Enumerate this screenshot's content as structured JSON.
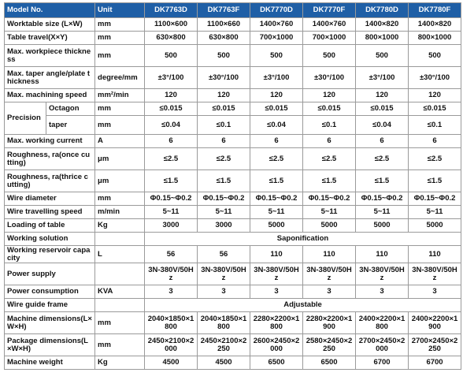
{
  "table": {
    "header": [
      "Model No.",
      "Unit",
      "DK7763D",
      "DK7763F",
      "DK7770D",
      "DK7770F",
      "DK7780D",
      "DK7780F"
    ],
    "rows": [
      {
        "label": "Worktable size (L×W)",
        "unit": "mm",
        "values": [
          "1100×600",
          "1100×660",
          "1400×760",
          "1400×760",
          "1400×820",
          "1400×820"
        ]
      },
      {
        "label": "Table travel(X×Y)",
        "unit": "mm",
        "values": [
          "630×800",
          "630×800",
          "700×1000",
          "700×1000",
          "800×1000",
          "800×1000"
        ]
      },
      {
        "label": "Max. workpiece thickness",
        "unit": "mm",
        "values": [
          "500",
          "500",
          "500",
          "500",
          "500",
          "500"
        ]
      },
      {
        "label": "Max. taper angle/plate thickness",
        "unit": "degree/mm",
        "values": [
          "±3°/100",
          "±30°/100",
          "±3°/100",
          "±30°/100",
          "±3°/100",
          "±30°/100"
        ]
      },
      {
        "label": "Max. machining speed",
        "unit": "mm²/min",
        "values": [
          "120",
          "120",
          "120",
          "120",
          "120",
          "120"
        ]
      },
      {
        "group": "Precision",
        "label": "Octagon",
        "unit": "mm",
        "values": [
          "≤0.015",
          "≤0.015",
          "≤0.015",
          "≤0.015",
          "≤0.015",
          "≤0.015"
        ]
      },
      {
        "label": "taper",
        "unit": "mm",
        "values": [
          "≤0.04",
          "≤0.1",
          "≤0.04",
          "≤0.1",
          "≤0.04",
          "≤0.1"
        ]
      },
      {
        "label": "Max. working current",
        "unit": "A",
        "values": [
          "6",
          "6",
          "6",
          "6",
          "6",
          "6"
        ]
      },
      {
        "label": "Roughness, ra(once cutting)",
        "unit": "μm",
        "values": [
          "≤2.5",
          "≤2.5",
          "≤2.5",
          "≤2.5",
          "≤2.5",
          "≤2.5"
        ]
      },
      {
        "label": "Roughness, ra(thrice cutting)",
        "unit": "μm",
        "values": [
          "≤1.5",
          "≤1.5",
          "≤1.5",
          "≤1.5",
          "≤1.5",
          "≤1.5"
        ]
      },
      {
        "label": "Wire diameter",
        "unit": "mm",
        "values": [
          "Φ0.15~Φ0.2",
          "Φ0.15~Φ0.2",
          "Φ0.15~Φ0.2",
          "Φ0.15~Φ0.2",
          "Φ0.15~Φ0.2",
          "Φ0.15~Φ0.2"
        ]
      },
      {
        "label": "Wire travelling speed",
        "unit": "m/min",
        "values": [
          "5~11",
          "5~11",
          "5~11",
          "5~11",
          "5~11",
          "5~11"
        ]
      },
      {
        "label": "Loading of table",
        "unit": "Kg",
        "values": [
          "3000",
          "3000",
          "5000",
          "5000",
          "5000",
          "5000"
        ]
      },
      {
        "label": "Working solution",
        "value": "Saponification"
      },
      {
        "label": "Working reservoir capacity",
        "unit": "L",
        "values": [
          "56",
          "56",
          "110",
          "110",
          "110",
          "110"
        ]
      },
      {
        "label": "Power supply",
        "values": [
          "3N-380V/50Hz",
          "3N-380V/50Hz",
          "3N-380V/50Hz",
          "3N-380V/50Hz",
          "3N-380V/50Hz",
          "3N-380V/50Hz"
        ]
      },
      {
        "label": "Power consumption",
        "unit": "KVA",
        "values": [
          "3",
          "3",
          "3",
          "3",
          "3",
          "3"
        ]
      },
      {
        "label": "Wire guide frame",
        "value": "Adjustable"
      },
      {
        "label": "Machine dimensions(L×W×H)",
        "unit": "mm",
        "values": [
          "2040×1850×1800",
          "2040×1850×1800",
          "2280×2200×1800",
          "2280×2200×1900",
          "2400×2200×1800",
          "2400×2200×1900"
        ]
      },
      {
        "label": "Package dimensions(L×W×H)",
        "unit": "mm",
        "values": [
          "2450×2100×2000",
          "2450×2100×2250",
          "2600×2450×2000",
          "2580×2450×2250",
          "2700×2450×2000",
          "2700×2450×2250"
        ]
      },
      {
        "label": "Machine weight",
        "unit": "Kg",
        "values": [
          "4500",
          "4500",
          "6500",
          "6500",
          "6700",
          "6700"
        ]
      }
    ]
  }
}
